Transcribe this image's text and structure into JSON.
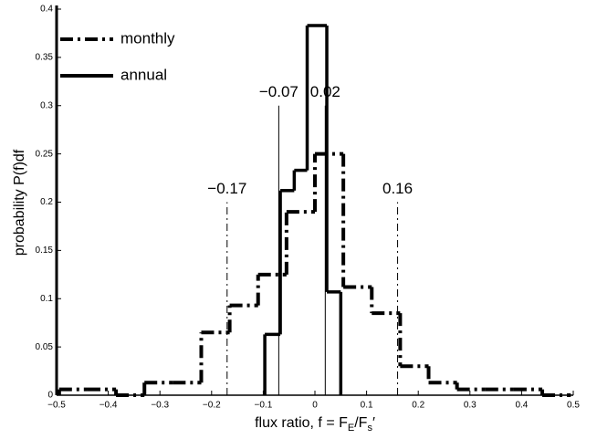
{
  "chart_data": {
    "type": "step-histogram",
    "xlabel": [
      "flux ratio,  f = F",
      "E",
      "/F",
      "s",
      "′"
    ],
    "ylabel": "probability P(f)df",
    "xlim": [
      -0.5,
      0.5
    ],
    "ylim": [
      0,
      0.4
    ],
    "xticks": [
      {
        "value": -0.5,
        "label": "−0.5"
      },
      {
        "value": -0.4,
        "label": "−0.4"
      },
      {
        "value": -0.3,
        "label": "−0.3"
      },
      {
        "value": -0.2,
        "label": "−0.2"
      },
      {
        "value": -0.1,
        "label": "−0.1"
      },
      0,
      0.1,
      0.2,
      0.3,
      0.4,
      0.5
    ],
    "yticks": [
      0,
      0.05,
      0.1,
      0.15,
      0.2,
      0.25,
      0.3,
      0.35,
      0.4
    ],
    "legend": "upper left",
    "series": [
      {
        "name": "monthly",
        "color": "#000000",
        "style": "dashdot",
        "bins": [
          -0.495,
          -0.44,
          -0.385,
          -0.33,
          -0.275,
          -0.22,
          -0.165,
          -0.11,
          -0.055,
          0,
          0.055,
          0.11,
          0.165,
          0.22,
          0.275,
          0.33,
          0.385,
          0.44,
          0.495
        ],
        "values": [
          0.006,
          0.006,
          0,
          0.013,
          0.013,
          0.065,
          0.093,
          0.125,
          0.19,
          0.25,
          0.112,
          0.085,
          0.03,
          0.013,
          0.006,
          0.006,
          0.006,
          0
        ],
        "markers": [
          {
            "x": {
              "value": -0.17,
              "label": "−0.17"
            },
            "top": 0.2
          },
          {
            "x": 0.16,
            "top": 0.2
          }
        ]
      },
      {
        "name": "annual",
        "color": "#000000",
        "style": "solid",
        "bins": [
          -0.097,
          -0.067,
          -0.04,
          -0.015,
          0.023,
          0.05
        ],
        "values": [
          0.063,
          0.212,
          0.233,
          0.383,
          0.107
        ],
        "markers": [
          {
            "x": {
              "value": -0.07,
              "label": "−0.07"
            },
            "top": 0.3
          },
          {
            "x": 0.02,
            "top": 0.3
          }
        ]
      }
    ]
  }
}
